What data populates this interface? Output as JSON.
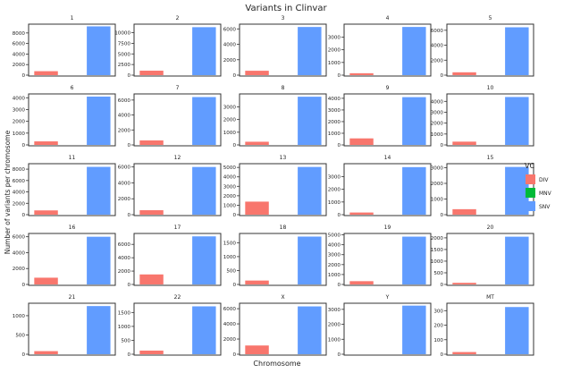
{
  "chart_data": {
    "type": "bar",
    "title": "Variants in Clinvar",
    "xlabel": "Chromosome",
    "ylabel": "Number of variants per chromosome",
    "legend": {
      "title": "VC",
      "position": "right",
      "entries": [
        {
          "name": "DIV",
          "color": "#F8766D"
        },
        {
          "name": "MNV",
          "color": "#00BA38"
        },
        {
          "name": "SNV",
          "color": "#619CFF"
        }
      ]
    },
    "categories": [
      "DIV",
      "MNV",
      "SNV"
    ],
    "grid": false,
    "facets": [
      {
        "label": "1",
        "ticks": [
          0,
          2000,
          4000,
          6000,
          8000
        ],
        "ymax": 9500,
        "values": [
          750,
          0,
          9250
        ]
      },
      {
        "label": "2",
        "ticks": [
          0,
          2500,
          5000,
          7500,
          10000
        ],
        "ymax": 11800,
        "values": [
          1050,
          0,
          11300
        ]
      },
      {
        "label": "3",
        "ticks": [
          0,
          2000,
          4000,
          6000
        ],
        "ymax": 6500,
        "values": [
          570,
          0,
          6250
        ]
      },
      {
        "label": "4",
        "ticks": [
          0,
          1000,
          2000,
          3000
        ],
        "ymax": 3950,
        "values": [
          150,
          0,
          3800
        ]
      },
      {
        "label": "5",
        "ticks": [
          0,
          2000,
          4000,
          6000
        ],
        "ymax": 6700,
        "values": [
          380,
          0,
          6400
        ]
      },
      {
        "label": "6",
        "ticks": [
          0,
          1000,
          2000,
          3000,
          4000
        ],
        "ymax": 4250,
        "values": [
          300,
          0,
          4100
        ]
      },
      {
        "label": "7",
        "ticks": [
          0,
          2000,
          4000,
          6000
        ],
        "ymax": 6700,
        "values": [
          600,
          0,
          6400
        ]
      },
      {
        "label": "8",
        "ticks": [
          0,
          1000,
          2000,
          3000
        ],
        "ymax": 3950,
        "values": [
          250,
          0,
          3800
        ]
      },
      {
        "label": "9",
        "ticks": [
          0,
          1000,
          2000,
          3000,
          4000
        ],
        "ymax": 4300,
        "values": [
          560,
          0,
          4100
        ]
      },
      {
        "label": "10",
        "ticks": [
          0,
          1000,
          2000,
          3000,
          4000
        ],
        "ymax": 4600,
        "values": [
          300,
          0,
          4400
        ]
      },
      {
        "label": "11",
        "ticks": [
          0,
          2000,
          4000,
          6000,
          8000
        ],
        "ymax": 8800,
        "values": [
          750,
          0,
          8400
        ]
      },
      {
        "label": "12",
        "ticks": [
          0,
          2000,
          4000,
          6000
        ],
        "ymax": 6300,
        "values": [
          560,
          0,
          6000
        ]
      },
      {
        "label": "13",
        "ticks": [
          0,
          1000,
          2000,
          3000,
          4000,
          5000
        ],
        "ymax": 5300,
        "values": [
          1380,
          0,
          5050
        ]
      },
      {
        "label": "14",
        "ticks": [
          0,
          1000,
          2000,
          3000
        ],
        "ymax": 3950,
        "values": [
          170,
          0,
          3750
        ]
      },
      {
        "label": "15",
        "ticks": [
          0,
          1000,
          2000,
          3000
        ],
        "ymax": 3200,
        "values": [
          350,
          0,
          3050
        ]
      },
      {
        "label": "16",
        "ticks": [
          0,
          2000,
          4000,
          6000
        ],
        "ymax": 6300,
        "values": [
          850,
          0,
          6000
        ]
      },
      {
        "label": "17",
        "ticks": [
          0,
          2000,
          4000,
          6000
        ],
        "ymax": 7500,
        "values": [
          1500,
          0,
          7200
        ]
      },
      {
        "label": "18",
        "ticks": [
          0,
          500,
          1000,
          1500
        ],
        "ymax": 1800,
        "values": [
          140,
          0,
          1720
        ]
      },
      {
        "label": "19",
        "ticks": [
          0,
          1000,
          2000,
          3000,
          4000,
          5000
        ],
        "ymax": 5050,
        "values": [
          330,
          0,
          4820
        ]
      },
      {
        "label": "20",
        "ticks": [
          0,
          500,
          1000,
          1500,
          2000
        ],
        "ymax": 2150,
        "values": [
          70,
          0,
          2050
        ]
      },
      {
        "label": "21",
        "ticks": [
          0,
          500,
          1000
        ],
        "ymax": 1300,
        "values": [
          80,
          0,
          1250
        ]
      },
      {
        "label": "22",
        "ticks": [
          0,
          500,
          1000,
          1500
        ],
        "ymax": 1800,
        "values": [
          130,
          0,
          1720
        ]
      },
      {
        "label": "X",
        "ticks": [
          0,
          2000,
          4000,
          6000
        ],
        "ymax": 6600,
        "values": [
          1150,
          0,
          6300
        ]
      },
      {
        "label": "Y",
        "ticks": [
          0,
          1000,
          2000,
          3000
        ],
        "ymax": 3350,
        "values": [
          0,
          0,
          3250
        ]
      },
      {
        "label": "MT",
        "ticks": [
          0,
          100,
          200,
          300
        ],
        "ymax": 345,
        "values": [
          15,
          0,
          325
        ]
      }
    ]
  }
}
